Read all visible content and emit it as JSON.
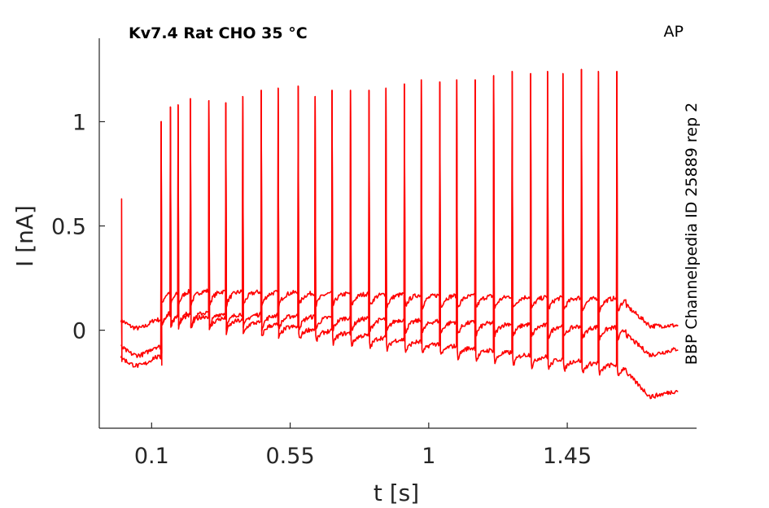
{
  "chart_data": {
    "type": "line",
    "title": "Kv7.4  Rat  CHO  35 °C",
    "corner_label": "AP",
    "side_label": "BBP Channelpedia ID 25889 rep 2",
    "xlabel": "t [s]",
    "ylabel": "I [nA]",
    "xlim": [
      -0.07,
      1.87
    ],
    "ylim": [
      -0.47,
      1.4
    ],
    "x_ticks": [
      0.1,
      0.55,
      1,
      1.45
    ],
    "x_tick_labels": [
      "0.1",
      "0.55",
      "1",
      "1.45"
    ],
    "y_ticks": [
      0,
      0.5,
      1
    ],
    "y_tick_labels": [
      "0",
      "0.5",
      "1"
    ],
    "grid": false,
    "line_color": "#ff0000",
    "stimulus": {
      "first_spike_time": 0.002,
      "train_start": 0.13,
      "train_end": 1.61,
      "end": 1.81
    },
    "spike_times": [
      0.13,
      0.16,
      0.185,
      0.225,
      0.285,
      0.34,
      0.395,
      0.455,
      0.51,
      0.575,
      0.63,
      0.685,
      0.745,
      0.805,
      0.86,
      0.92,
      0.975,
      1.035,
      1.09,
      1.15,
      1.21,
      1.27,
      1.33,
      1.385,
      1.435,
      1.495,
      1.55,
      1.61
    ],
    "spike_peaks": [
      1.0,
      1.07,
      1.08,
      1.11,
      1.1,
      1.09,
      1.12,
      1.15,
      1.16,
      1.17,
      1.12,
      1.15,
      1.15,
      1.15,
      1.16,
      1.18,
      1.2,
      1.19,
      1.2,
      1.2,
      1.22,
      1.24,
      1.23,
      1.24,
      1.23,
      1.25,
      1.24,
      1.24
    ],
    "series": [
      {
        "pre_level": 0.05,
        "first_spike_peak": 0.63,
        "plateau_start": 0.16,
        "plateau_end": 0.12,
        "post_level": 0.02
      },
      {
        "pre_level": -0.08,
        "plateau_start": 0.06,
        "plateau_end": -0.02,
        "post_level": -0.12
      },
      {
        "pre_level": -0.13,
        "plateau_start": 0.06,
        "plateau_end": -0.2,
        "post_level": -0.32
      }
    ]
  }
}
